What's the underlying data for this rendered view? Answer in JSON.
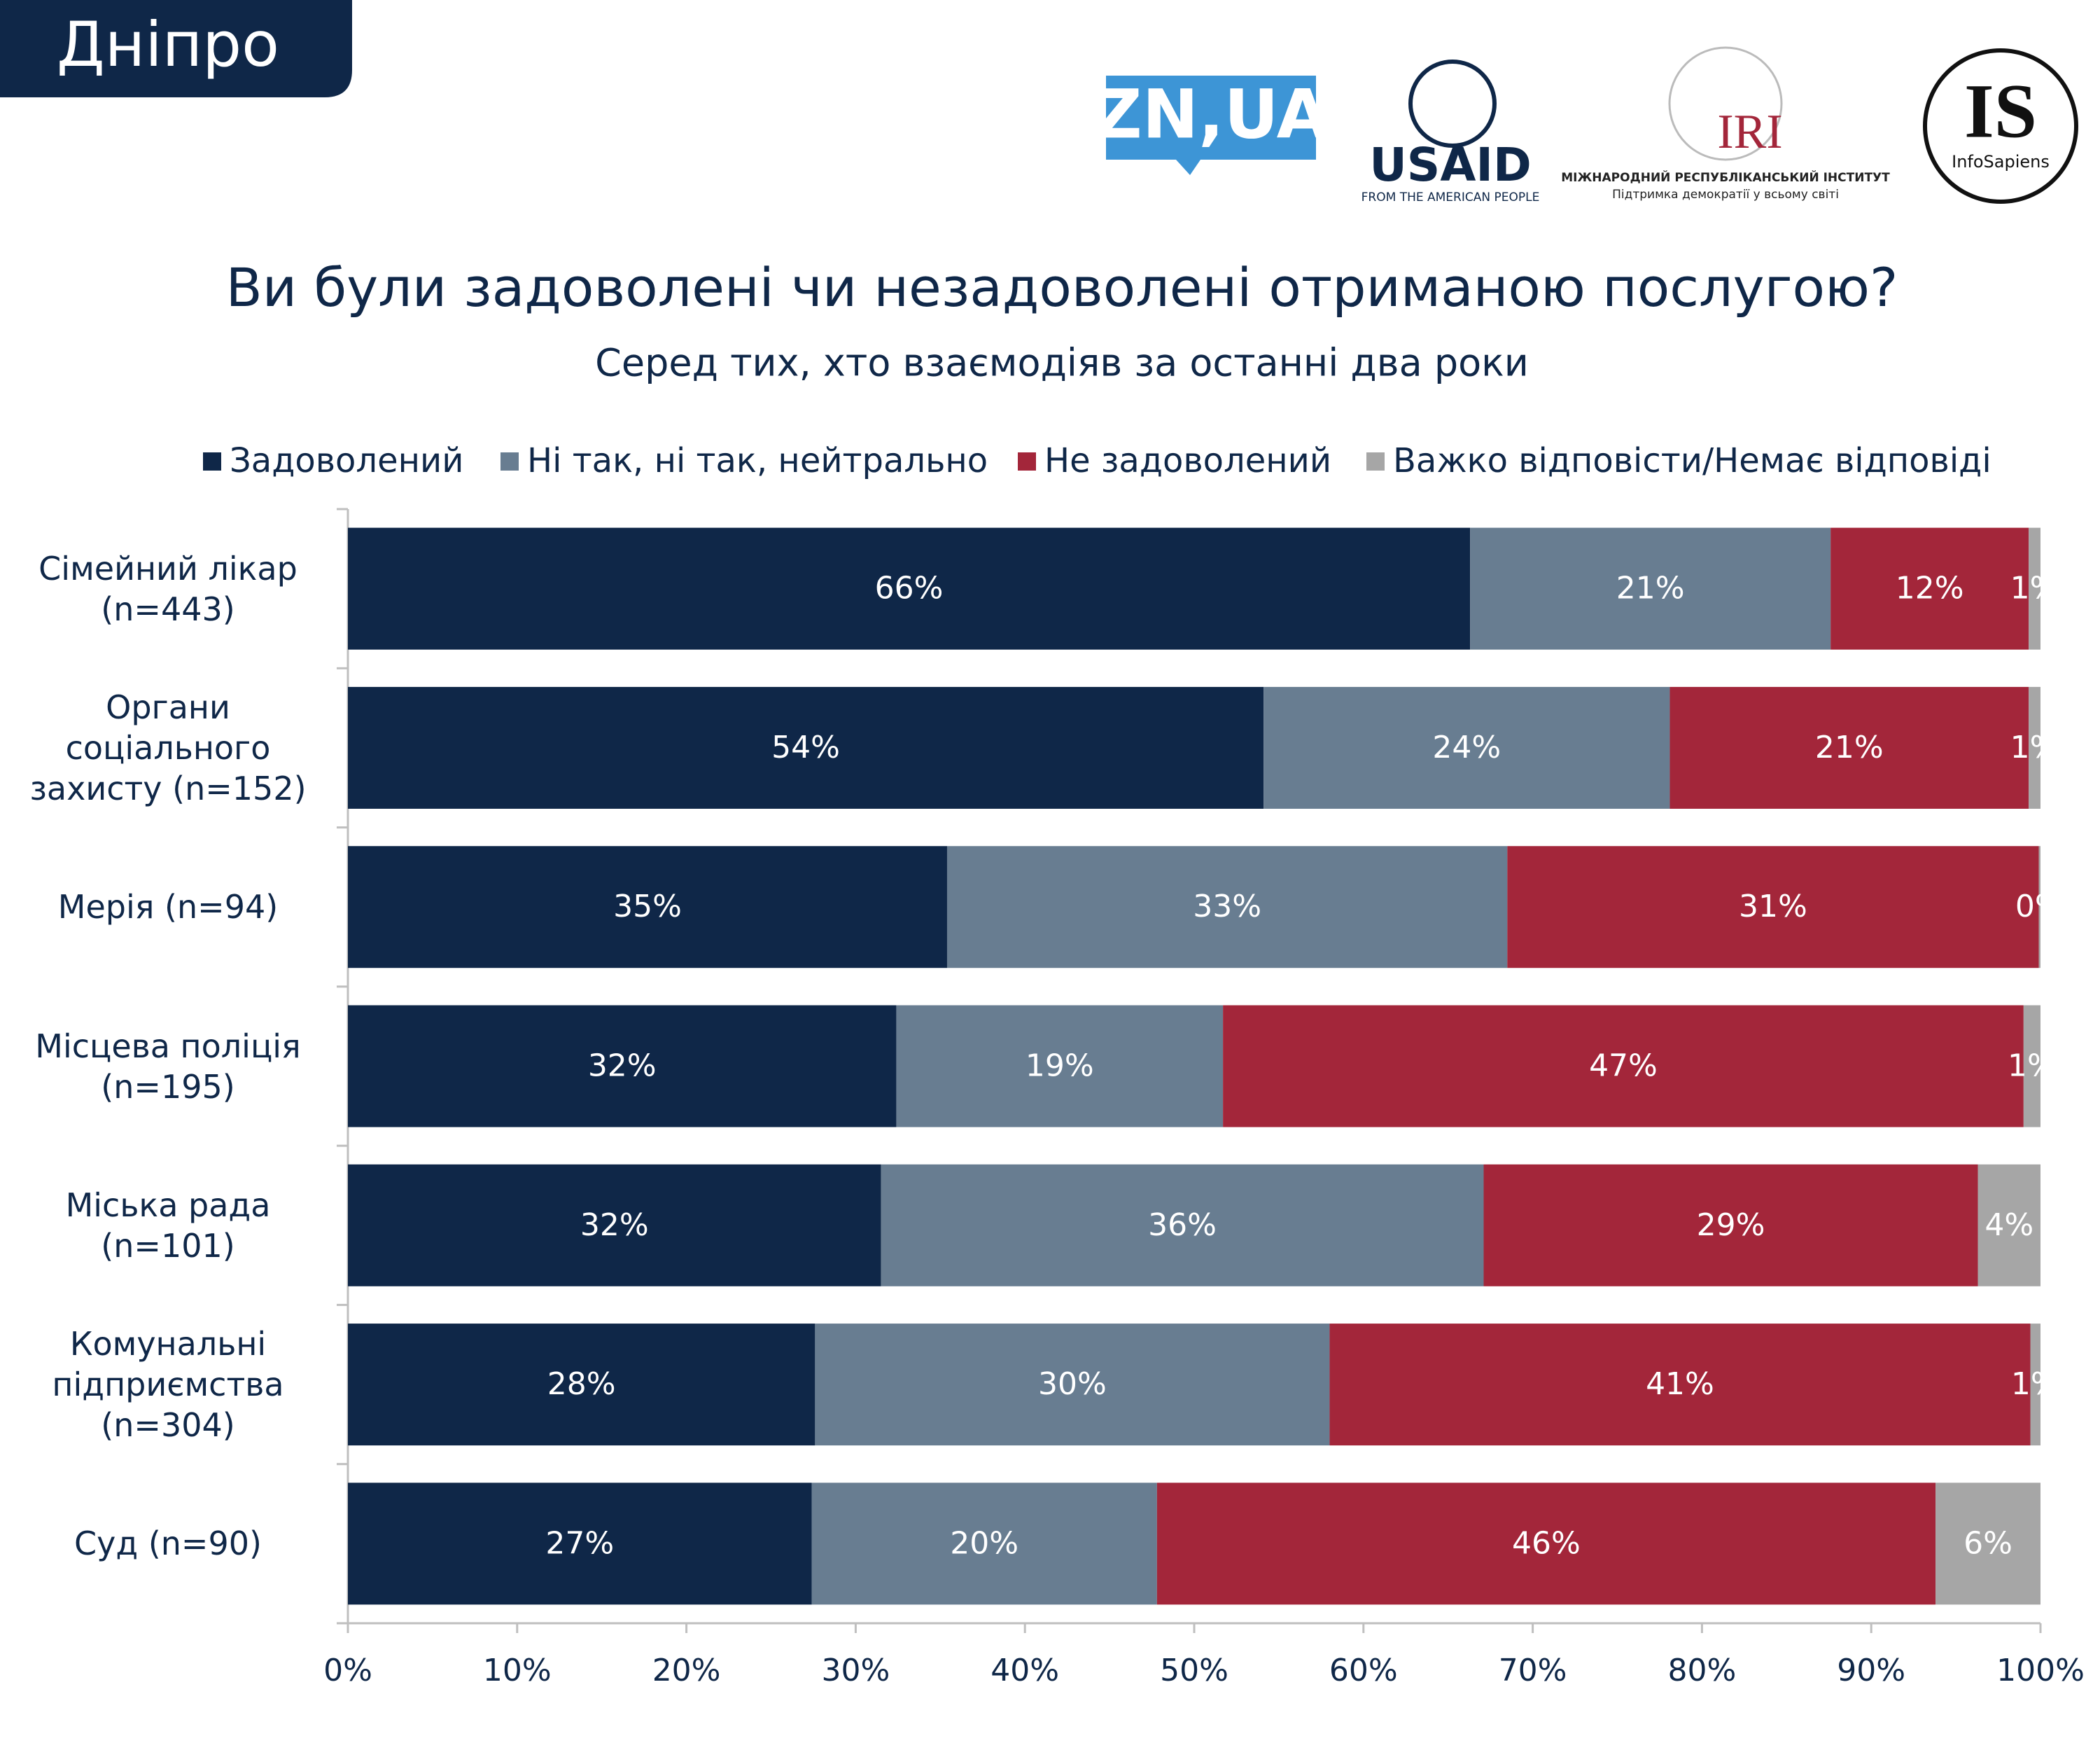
{
  "header": {
    "city": "Дніпро",
    "logo_zn": "ZN,UA",
    "logo_usaid": "USAID",
    "logo_usaid_sub": "FROM THE AMERICAN PEOPLE",
    "logo_iri": "IRI",
    "logo_iri_name": "МІЖНАРОДНИЙ РЕСПУБЛІКАНСЬКИЙ ІНСТИТУТ",
    "logo_iri_sub": "Підтримка демократії у всьому світі",
    "logo_is": "IS",
    "logo_is_sub": "InfoSapiens"
  },
  "chart_data": {
    "type": "stacked-barh",
    "title": "Ви були задоволені чи незадоволені отриманою послугою?",
    "subtitle": "Серед тих, хто взаємодіяв за останні два роки",
    "categories": [
      "Сімейний лікар (n=443)",
      "Органи соціального захисту (n=152)",
      "Мерія (n=94)",
      "Місцева поліція (n=195)",
      "Міська рада (n=101)",
      "Комунальні підприємства (n=304)",
      "Суд (n=90)"
    ],
    "series": [
      {
        "name": "Задоволений",
        "color": "#0f2748",
        "values": [
          66.3,
          54.1,
          35.4,
          32.4,
          31.5,
          27.6,
          27.4
        ],
        "value_labels": [
          "66%",
          "54%",
          "35%",
          "32%",
          "32%",
          "28%",
          "27%"
        ]
      },
      {
        "name": "Ні так, ні так, нейтрально",
        "color": "#687d91",
        "values": [
          21.3,
          24.0,
          33.1,
          19.3,
          35.6,
          30.4,
          20.4
        ],
        "value_labels": [
          "21%",
          "24%",
          "33%",
          "19%",
          "36%",
          "30%",
          "20%"
        ]
      },
      {
        "name": "Не задоволений",
        "color": "#a3263a",
        "values": [
          11.7,
          21.2,
          31.4,
          47.3,
          29.2,
          41.4,
          46.0
        ],
        "value_labels": [
          "12%",
          "21%",
          "31%",
          "47%",
          "29%",
          "41%",
          "46%"
        ]
      },
      {
        "name": "Важко відповісти/Немає відповіді",
        "color": "#a6a6a6",
        "values": [
          0.7,
          0.7,
          0.1,
          1.0,
          3.7,
          0.6,
          6.2
        ],
        "value_labels": [
          "1%",
          "1%",
          "0%",
          "1%",
          "4%",
          "1%",
          "6%"
        ]
      }
    ],
    "xlim": [
      0,
      100
    ],
    "xticks": [
      {
        "value": 0,
        "label": "0%"
      },
      {
        "value": 10,
        "label": "10%"
      },
      {
        "value": 20,
        "label": "20%"
      },
      {
        "value": 30,
        "label": "30%"
      },
      {
        "value": 40,
        "label": "40%"
      },
      {
        "value": 50,
        "label": "50%"
      },
      {
        "value": 60,
        "label": "60%"
      },
      {
        "value": 70,
        "label": "70%"
      },
      {
        "value": 80,
        "label": "80%"
      },
      {
        "value": 90,
        "label": "90%"
      },
      {
        "value": 100,
        "label": "100%"
      }
    ],
    "legend": "top"
  }
}
